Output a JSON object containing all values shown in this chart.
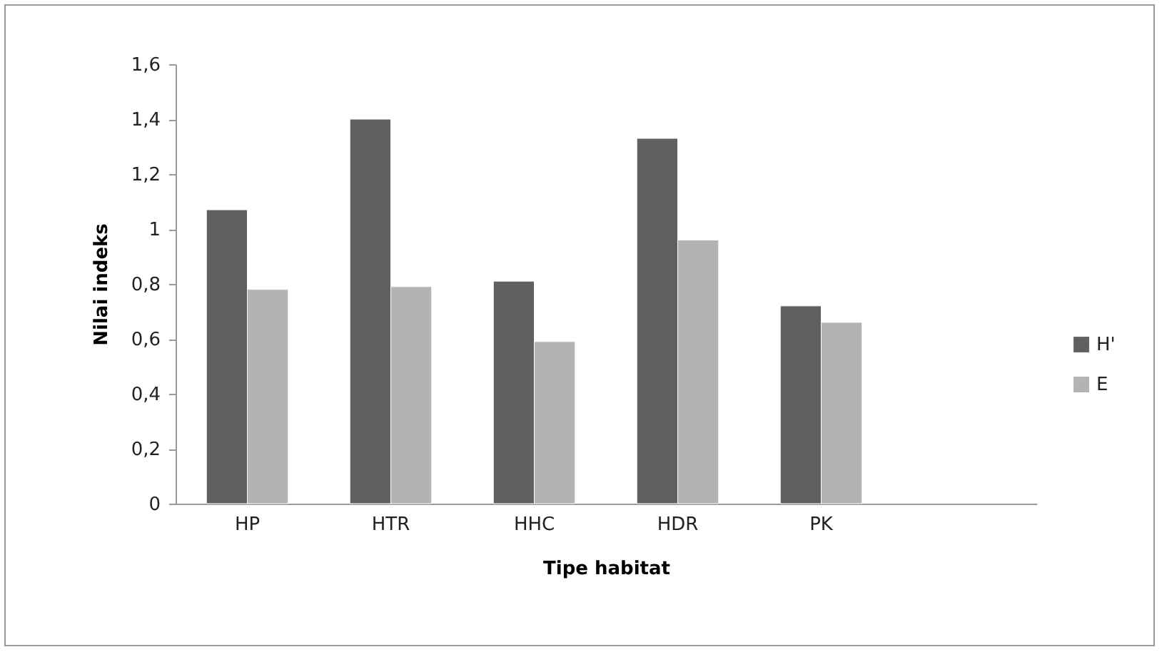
{
  "chart_data": {
    "type": "bar",
    "xlabel": "Tipe habitat",
    "ylabel": "Nilai indeks",
    "categories": [
      "HP",
      "HTR",
      "HHC",
      "HDR",
      "PK",
      null
    ],
    "series": [
      {
        "name": "H'",
        "color": "#606060",
        "values": [
          1.07,
          1.4,
          0.81,
          1.33,
          0.72,
          null
        ]
      },
      {
        "name": "E",
        "color": "#b3b3b3",
        "values": [
          0.78,
          0.79,
          0.59,
          0.96,
          0.66,
          null
        ]
      }
    ],
    "ylim": [
      0,
      1.6
    ],
    "yticks": [
      0,
      {
        "value": 0.2,
        "label": "0,2"
      },
      {
        "value": 0.4,
        "label": "0,4"
      },
      {
        "value": 0.6,
        "label": "0,6"
      },
      {
        "value": 0.8,
        "label": "0,8"
      },
      1,
      {
        "value": 1.2,
        "label": "1,2"
      },
      {
        "value": 1.4,
        "label": "1,4"
      },
      {
        "value": 1.6,
        "label": "1,6"
      }
    ],
    "grid": false,
    "legend": "right"
  }
}
